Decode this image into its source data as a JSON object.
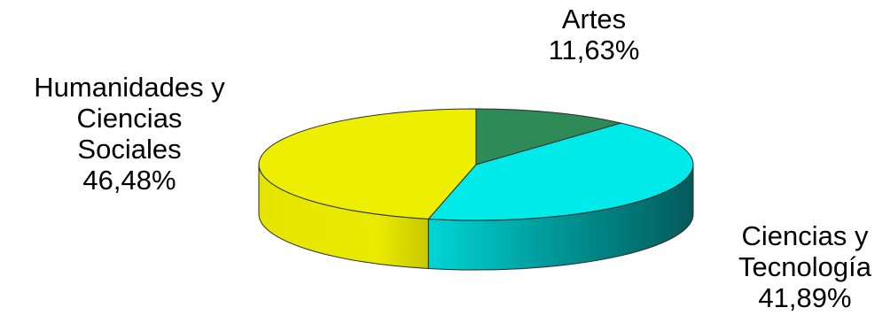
{
  "chart_data": {
    "type": "pie",
    "title": "",
    "slices": [
      {
        "label_lines": [
          "Artes"
        ],
        "value_label": "11,63%",
        "value": 11.63,
        "color": "#2e8b57",
        "side_color": "#1f5f3c"
      },
      {
        "label_lines": [
          "Ciencias y",
          "Tecnología"
        ],
        "value_label": "41,89%",
        "value": 41.89,
        "color": "#00eaea",
        "side_color": "#0a6d6d"
      },
      {
        "label_lines": [
          "Humanidades y",
          "Ciencias",
          "Sociales"
        ],
        "value_label": "46,48%",
        "value": 46.48,
        "color": "#eeee00",
        "side_color": "#bcbc00"
      }
    ],
    "style": "3d",
    "legend": "none"
  }
}
